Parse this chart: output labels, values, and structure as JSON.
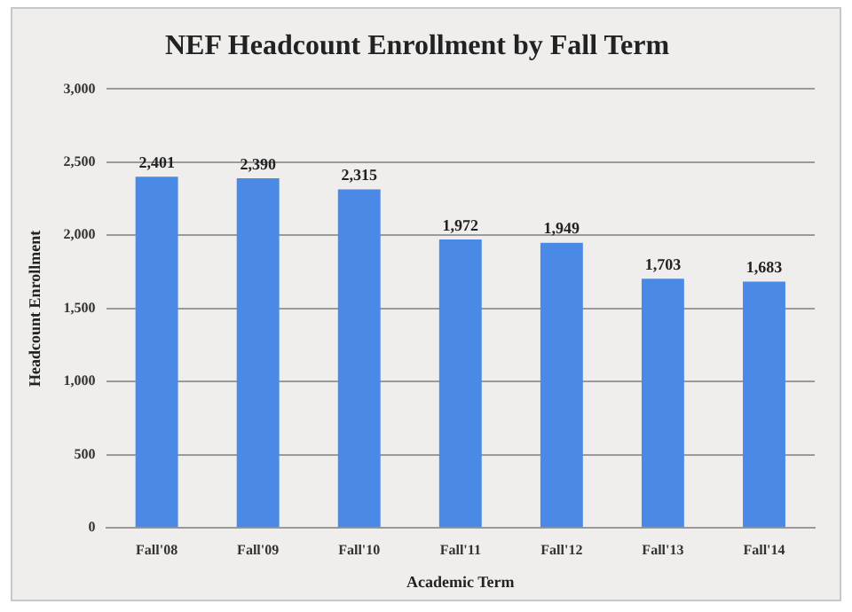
{
  "chart_data": {
    "type": "bar",
    "title": "NEF Headcount Enrollment by Fall Term",
    "xlabel": "Academic Term",
    "ylabel": "Headcount Enrollment",
    "categories": [
      "Fall'08",
      "Fall'09",
      "Fall'10",
      "Fall'11",
      "Fall'12",
      "Fall'13",
      "Fall'14"
    ],
    "values": [
      2401,
      2390,
      2315,
      1972,
      1949,
      1703,
      1683
    ],
    "value_labels": [
      "2,401",
      "2,390",
      "2,315",
      "1,972",
      "1,949",
      "1,703",
      "1,683"
    ],
    "color": "#4a8ae6",
    "ylim": [
      0,
      3000
    ],
    "yticks": [
      {
        "value": 0,
        "label": "0"
      },
      {
        "value": 500,
        "label": "500"
      },
      {
        "value": 1000,
        "label": "1,000"
      },
      {
        "value": 1500,
        "label": "1,500"
      },
      {
        "value": 2000,
        "label": "2,000"
      },
      {
        "value": 2500,
        "label": "2,500"
      },
      {
        "value": 3000,
        "label": "3,000"
      }
    ],
    "grid": "y",
    "legend": false
  }
}
